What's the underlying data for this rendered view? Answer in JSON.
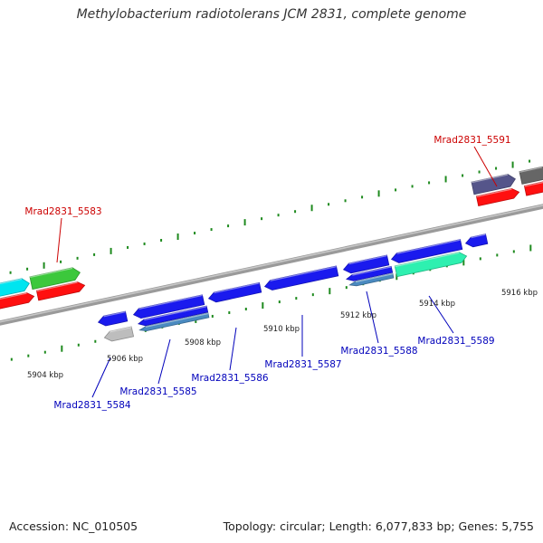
{
  "title": "Methylobacterium radiotolerans JCM 2831, complete genome",
  "footer": {
    "accession": "Accession: NC_010505",
    "topology": "Topology: circular; Length: 6,077,833 bp; Genes: 5,755"
  },
  "colors": {
    "backbone": "#888888",
    "tick": "#1e8a1e",
    "label_forward": "#cc0000",
    "label_reverse": "#0000bb",
    "scale_text": "#222222"
  },
  "scale": {
    "unit": "kbp",
    "tick_labels": [
      "5904 kbp",
      "5906 kbp",
      "5908 kbp",
      "5910 kbp",
      "5912 kbp",
      "5914 kbp",
      "5916 kbp"
    ]
  },
  "gene_labels": [
    {
      "name": "Mrad2831_5583",
      "strand": "forward"
    },
    {
      "name": "Mrad2831_5591",
      "strand": "forward"
    },
    {
      "name": "Mrad2831_5584",
      "strand": "reverse"
    },
    {
      "name": "Mrad2831_5585",
      "strand": "reverse"
    },
    {
      "name": "Mrad2831_5586",
      "strand": "reverse"
    },
    {
      "name": "Mrad2831_5587",
      "strand": "reverse"
    },
    {
      "name": "Mrad2831_5588",
      "strand": "reverse"
    },
    {
      "name": "Mrad2831_5589",
      "strand": "reverse"
    }
  ],
  "features": [
    {
      "name": "gene-5580",
      "strand": "forward",
      "color": "#00e5f0"
    },
    {
      "name": "gene-5580-cds",
      "strand": "forward",
      "color": "#ff1010"
    },
    {
      "name": "gene-5583",
      "strand": "forward",
      "color": "#3cc83c"
    },
    {
      "name": "gene-5583-cds",
      "strand": "forward",
      "color": "#ff1010"
    },
    {
      "name": "gene-5584",
      "strand": "reverse",
      "color": "#1a1aee"
    },
    {
      "name": "gene-5584-extra",
      "strand": "reverse",
      "color": "#bdbdbd"
    },
    {
      "name": "gene-5585",
      "strand": "reverse",
      "color": "#1a1aee"
    },
    {
      "name": "gene-5585-a",
      "strand": "reverse",
      "color": "#1a1aee"
    },
    {
      "name": "gene-5585-b",
      "strand": "reverse",
      "color": "#4a8ac0"
    },
    {
      "name": "gene-5586",
      "strand": "reverse",
      "color": "#1a1aee"
    },
    {
      "name": "gene-5587",
      "strand": "reverse",
      "color": "#1a1aee"
    },
    {
      "name": "gene-5588",
      "strand": "reverse",
      "color": "#1a1aee"
    },
    {
      "name": "gene-5588-a",
      "strand": "reverse",
      "color": "#1a1aee"
    },
    {
      "name": "gene-5588-b",
      "strand": "reverse",
      "color": "#4a8ac0"
    },
    {
      "name": "gene-5589",
      "strand": "reverse",
      "color": "#1a1aee"
    },
    {
      "name": "gene-5589-cds",
      "strand": "reverse",
      "color": "#2ef0b0"
    },
    {
      "name": "gene-5590",
      "strand": "reverse",
      "color": "#1a1aee"
    },
    {
      "name": "gene-5591",
      "strand": "forward",
      "color": "#55558a"
    },
    {
      "name": "gene-5591-cds",
      "strand": "forward",
      "color": "#ff1010"
    },
    {
      "name": "gene-5592",
      "strand": "forward",
      "color": "#666666"
    },
    {
      "name": "gene-5592-cds",
      "strand": "forward",
      "color": "#ff1010"
    }
  ]
}
